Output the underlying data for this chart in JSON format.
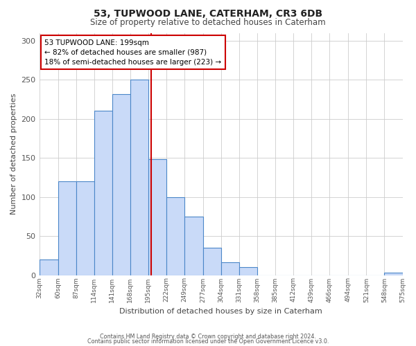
{
  "title": "53, TUPWOOD LANE, CATERHAM, CR3 6DB",
  "subtitle": "Size of property relative to detached houses in Caterham",
  "xlabel": "Distribution of detached houses by size in Caterham",
  "ylabel": "Number of detached properties",
  "bin_edges": [
    32,
    60,
    87,
    114,
    141,
    168,
    195,
    222,
    249,
    277,
    304,
    331,
    358,
    385,
    412,
    439,
    466,
    494,
    521,
    548,
    575
  ],
  "bar_heights": [
    20,
    120,
    120,
    210,
    232,
    250,
    148,
    100,
    75,
    35,
    16,
    10,
    0,
    0,
    0,
    0,
    0,
    0,
    0,
    3
  ],
  "tick_labels": [
    "32sqm",
    "60sqm",
    "87sqm",
    "114sqm",
    "141sqm",
    "168sqm",
    "195sqm",
    "222sqm",
    "249sqm",
    "277sqm",
    "304sqm",
    "331sqm",
    "358sqm",
    "385sqm",
    "412sqm",
    "439sqm",
    "466sqm",
    "494sqm",
    "521sqm",
    "548sqm",
    "575sqm"
  ],
  "bar_color": "#c9daf8",
  "bar_edge_color": "#4a86c8",
  "vline_x": 199,
  "vline_color": "#cc0000",
  "annotation_title": "53 TUPWOOD LANE: 199sqm",
  "annotation_line1": "← 82% of detached houses are smaller (987)",
  "annotation_line2": "18% of semi-detached houses are larger (223) →",
  "annotation_box_color": "#ffffff",
  "annotation_box_edge": "#cc0000",
  "ylim": [
    0,
    310
  ],
  "background_color": "#ffffff",
  "grid_color": "#cccccc",
  "yticks": [
    0,
    50,
    100,
    150,
    200,
    250,
    300
  ],
  "footer1": "Contains HM Land Registry data © Crown copyright and database right 2024.",
  "footer2": "Contains public sector information licensed under the Open Government Licence v3.0."
}
